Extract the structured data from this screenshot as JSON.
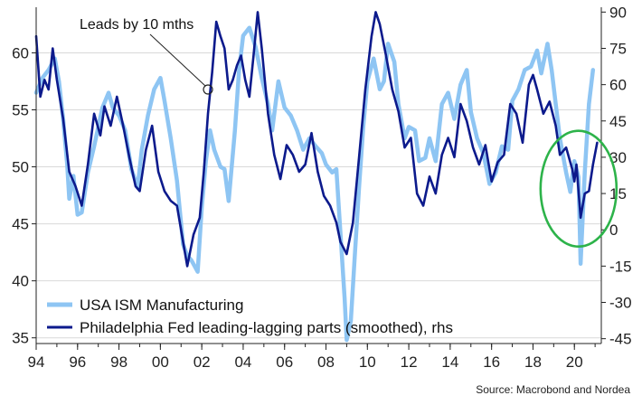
{
  "chart_data": {
    "type": "line",
    "source": "Source: Macrobond and Nordea",
    "x_range": [
      1994,
      2021.3
    ],
    "x_ticks": [
      1994,
      1996,
      1998,
      2000,
      2002,
      2004,
      2006,
      2008,
      2010,
      2012,
      2014,
      2016,
      2018,
      2020
    ],
    "x_tick_labels": [
      "94",
      "96",
      "98",
      "00",
      "02",
      "04",
      "06",
      "08",
      "10",
      "12",
      "14",
      "16",
      "18",
      "20"
    ],
    "y_left": {
      "range": [
        34.5,
        64
      ],
      "ticks": [
        35,
        40,
        45,
        50,
        55,
        60
      ]
    },
    "y_right": {
      "range": [
        -47,
        92
      ],
      "ticks": [
        -45,
        -30,
        -15,
        0,
        15,
        30,
        45,
        60,
        75,
        90
      ]
    },
    "grid": true,
    "legend_position": "bottom-left",
    "colors": {
      "ism": "#8ec5f3",
      "philly": "#0c1a8c",
      "circle": "#2db34a"
    },
    "annotation": {
      "text": "Leads by 10 mths",
      "x": 2002.3,
      "y_rhs": 58
    },
    "highlight_circle": {
      "x": 2020.2,
      "y_rhs": 17
    },
    "series": [
      {
        "name": "USA ISM Manufacturing",
        "axis": "left",
        "points": [
          [
            1994.0,
            56.5
          ],
          [
            1994.3,
            57.8
          ],
          [
            1994.6,
            58.5
          ],
          [
            1994.9,
            59.5
          ],
          [
            1995.1,
            57.5
          ],
          [
            1995.3,
            54.2
          ],
          [
            1995.5,
            50.2
          ],
          [
            1995.6,
            47.2
          ],
          [
            1995.8,
            49.2
          ],
          [
            1996.0,
            45.8
          ],
          [
            1996.2,
            46.0
          ],
          [
            1996.5,
            49.5
          ],
          [
            1996.8,
            51.8
          ],
          [
            1997.0,
            53.5
          ],
          [
            1997.2,
            55.2
          ],
          [
            1997.5,
            56.5
          ],
          [
            1997.7,
            55.2
          ],
          [
            1998.0,
            54.5
          ],
          [
            1998.3,
            53.2
          ],
          [
            1998.6,
            49.8
          ],
          [
            1998.9,
            48.2
          ],
          [
            1999.1,
            51.5
          ],
          [
            1999.4,
            54.5
          ],
          [
            1999.7,
            56.8
          ],
          [
            2000.0,
            57.8
          ],
          [
            2000.2,
            55.8
          ],
          [
            2000.5,
            52.5
          ],
          [
            2000.8,
            48.8
          ],
          [
            2001.1,
            43.2
          ],
          [
            2001.3,
            42.2
          ],
          [
            2001.5,
            41.8
          ],
          [
            2001.8,
            40.8
          ],
          [
            2002.0,
            46.5
          ],
          [
            2002.2,
            50.5
          ],
          [
            2002.4,
            53.2
          ],
          [
            2002.6,
            51.5
          ],
          [
            2002.9,
            50.0
          ],
          [
            2003.1,
            49.8
          ],
          [
            2003.3,
            47.0
          ],
          [
            2003.6,
            53.2
          ],
          [
            2003.8,
            58.5
          ],
          [
            2004.0,
            61.5
          ],
          [
            2004.3,
            62.2
          ],
          [
            2004.6,
            60.5
          ],
          [
            2004.9,
            57.8
          ],
          [
            2005.2,
            55.5
          ],
          [
            2005.4,
            53.2
          ],
          [
            2005.7,
            57.5
          ],
          [
            2006.0,
            55.2
          ],
          [
            2006.3,
            54.5
          ],
          [
            2006.6,
            53.2
          ],
          [
            2006.9,
            51.5
          ],
          [
            2007.2,
            52.5
          ],
          [
            2007.5,
            51.8
          ],
          [
            2007.8,
            51.2
          ],
          [
            2008.0,
            50.2
          ],
          [
            2008.3,
            49.5
          ],
          [
            2008.5,
            49.8
          ],
          [
            2008.7,
            44.2
          ],
          [
            2008.9,
            38.5
          ],
          [
            2009.0,
            34.8
          ],
          [
            2009.2,
            36.5
          ],
          [
            2009.4,
            42.5
          ],
          [
            2009.6,
            48.2
          ],
          [
            2009.8,
            53.5
          ],
          [
            2010.0,
            57.5
          ],
          [
            2010.3,
            59.5
          ],
          [
            2010.6,
            56.8
          ],
          [
            2010.8,
            57.5
          ],
          [
            2011.0,
            60.8
          ],
          [
            2011.3,
            59.2
          ],
          [
            2011.5,
            55.5
          ],
          [
            2011.8,
            52.5
          ],
          [
            2012.0,
            53.5
          ],
          [
            2012.3,
            53.2
          ],
          [
            2012.5,
            50.5
          ],
          [
            2012.8,
            50.8
          ],
          [
            2013.0,
            52.5
          ],
          [
            2013.3,
            50.5
          ],
          [
            2013.6,
            55.5
          ],
          [
            2013.9,
            56.5
          ],
          [
            2014.2,
            54.2
          ],
          [
            2014.5,
            57.2
          ],
          [
            2014.8,
            58.5
          ],
          [
            2015.0,
            54.8
          ],
          [
            2015.3,
            52.5
          ],
          [
            2015.6,
            51.2
          ],
          [
            2015.9,
            48.5
          ],
          [
            2016.2,
            49.5
          ],
          [
            2016.5,
            51.8
          ],
          [
            2016.8,
            51.5
          ],
          [
            2017.0,
            55.8
          ],
          [
            2017.3,
            56.8
          ],
          [
            2017.6,
            58.5
          ],
          [
            2017.9,
            58.8
          ],
          [
            2018.2,
            60.2
          ],
          [
            2018.4,
            58.2
          ],
          [
            2018.7,
            60.8
          ],
          [
            2018.9,
            58.5
          ],
          [
            2019.1,
            55.5
          ],
          [
            2019.3,
            52.5
          ],
          [
            2019.6,
            49.5
          ],
          [
            2019.8,
            47.8
          ],
          [
            2020.0,
            50.5
          ],
          [
            2020.2,
            49.1
          ],
          [
            2020.3,
            41.5
          ],
          [
            2020.5,
            49.5
          ],
          [
            2020.7,
            55.5
          ],
          [
            2020.9,
            58.5
          ]
        ]
      },
      {
        "name": "Philadelphia Fed leading-lagging parts (smoothed), rhs",
        "axis": "right",
        "points": [
          [
            1994.0,
            80
          ],
          [
            1994.2,
            55
          ],
          [
            1994.4,
            62
          ],
          [
            1994.6,
            58
          ],
          [
            1994.8,
            75
          ],
          [
            1995.0,
            62
          ],
          [
            1995.3,
            46
          ],
          [
            1995.6,
            24
          ],
          [
            1995.9,
            18
          ],
          [
            1996.2,
            10
          ],
          [
            1996.5,
            27
          ],
          [
            1996.8,
            48
          ],
          [
            1997.1,
            39
          ],
          [
            1997.3,
            51
          ],
          [
            1997.6,
            43
          ],
          [
            1997.9,
            55
          ],
          [
            1998.2,
            43
          ],
          [
            1998.5,
            30
          ],
          [
            1998.8,
            18
          ],
          [
            1999.0,
            16
          ],
          [
            1999.3,
            33
          ],
          [
            1999.6,
            43
          ],
          [
            1999.9,
            24
          ],
          [
            2000.2,
            16
          ],
          [
            2000.5,
            12
          ],
          [
            2000.8,
            10
          ],
          [
            2001.1,
            -5
          ],
          [
            2001.3,
            -15
          ],
          [
            2001.6,
            -2
          ],
          [
            2001.9,
            5
          ],
          [
            2002.1,
            24
          ],
          [
            2002.3,
            48
          ],
          [
            2002.5,
            65
          ],
          [
            2002.7,
            86
          ],
          [
            2002.9,
            80
          ],
          [
            2003.1,
            75
          ],
          [
            2003.3,
            58
          ],
          [
            2003.5,
            62
          ],
          [
            2003.7,
            68
          ],
          [
            2003.9,
            72
          ],
          [
            2004.1,
            62
          ],
          [
            2004.3,
            55
          ],
          [
            2004.5,
            72
          ],
          [
            2004.7,
            90
          ],
          [
            2004.9,
            75
          ],
          [
            2005.2,
            48
          ],
          [
            2005.5,
            31
          ],
          [
            2005.8,
            21
          ],
          [
            2006.1,
            35
          ],
          [
            2006.4,
            31
          ],
          [
            2006.7,
            24
          ],
          [
            2007.0,
            27
          ],
          [
            2007.3,
            40
          ],
          [
            2007.6,
            24
          ],
          [
            2007.9,
            14
          ],
          [
            2008.2,
            10
          ],
          [
            2008.5,
            3
          ],
          [
            2008.7,
            -5
          ],
          [
            2009.0,
            -10
          ],
          [
            2009.3,
            3
          ],
          [
            2009.6,
            30
          ],
          [
            2009.9,
            58
          ],
          [
            2010.2,
            80
          ],
          [
            2010.4,
            90
          ],
          [
            2010.6,
            85
          ],
          [
            2010.9,
            72
          ],
          [
            2011.2,
            58
          ],
          [
            2011.5,
            49
          ],
          [
            2011.8,
            34
          ],
          [
            2012.1,
            38
          ],
          [
            2012.4,
            15
          ],
          [
            2012.7,
            10
          ],
          [
            2013.0,
            22
          ],
          [
            2013.3,
            15
          ],
          [
            2013.6,
            31
          ],
          [
            2013.9,
            38
          ],
          [
            2014.2,
            30
          ],
          [
            2014.5,
            52
          ],
          [
            2014.8,
            45
          ],
          [
            2015.1,
            34
          ],
          [
            2015.4,
            27
          ],
          [
            2015.7,
            35
          ],
          [
            2016.0,
            20
          ],
          [
            2016.3,
            28
          ],
          [
            2016.6,
            31
          ],
          [
            2016.9,
            52
          ],
          [
            2017.2,
            48
          ],
          [
            2017.5,
            36
          ],
          [
            2017.8,
            60
          ],
          [
            2018.0,
            64
          ],
          [
            2018.2,
            58
          ],
          [
            2018.5,
            48
          ],
          [
            2018.8,
            53
          ],
          [
            2019.1,
            43
          ],
          [
            2019.3,
            31
          ],
          [
            2019.6,
            34
          ],
          [
            2019.9,
            25
          ],
          [
            2020.0,
            20
          ],
          [
            2020.1,
            27
          ],
          [
            2020.3,
            5
          ],
          [
            2020.5,
            15
          ],
          [
            2020.7,
            16
          ],
          [
            2020.9,
            27
          ],
          [
            2021.1,
            36
          ]
        ]
      }
    ]
  }
}
